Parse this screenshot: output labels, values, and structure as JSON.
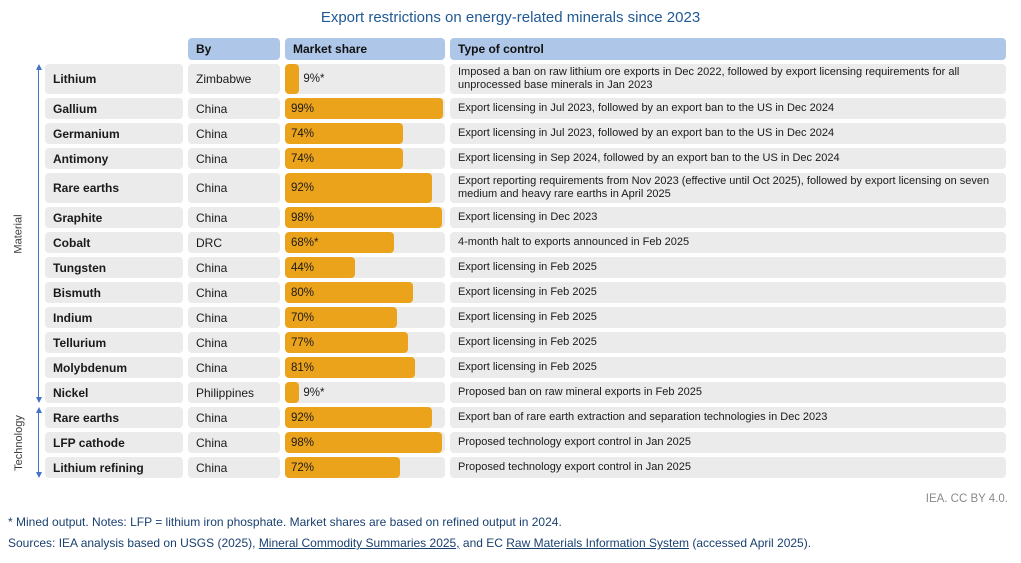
{
  "title": "Export restrictions on energy-related minerals since 2023",
  "columns": {
    "by": "By",
    "market_share": "Market share",
    "type_of_control": "Type of control"
  },
  "groups": [
    {
      "label": "Material",
      "rows": 13
    },
    {
      "label": "Technology",
      "rows": 3
    }
  ],
  "rows": [
    {
      "mineral": "Lithium",
      "by": "Zimbabwe",
      "share": 9,
      "share_label": "9%*",
      "tall": true,
      "control": "Imposed a ban on raw lithium ore exports in Dec 2022, followed by export licensing requirements for all unprocessed base minerals in Jan 2023"
    },
    {
      "mineral": "Gallium",
      "by": "China",
      "share": 99,
      "share_label": "99%",
      "control": "Export licensing in Jul 2023, followed by an export ban to the US in Dec 2024"
    },
    {
      "mineral": "Germanium",
      "by": "China",
      "share": 74,
      "share_label": "74%",
      "control": "Export licensing in Jul 2023, followed by an export ban to the US in Dec 2024"
    },
    {
      "mineral": "Antimony",
      "by": "China",
      "share": 74,
      "share_label": "74%",
      "control": "Export licensing in Sep 2024, followed by an export ban to the US in Dec 2024"
    },
    {
      "mineral": "Rare earths",
      "by": "China",
      "share": 92,
      "share_label": "92%",
      "tall": true,
      "control": "Export reporting requirements from Nov 2023 (effective until Oct 2025), followed by export licensing on seven medium and heavy rare earths in April 2025"
    },
    {
      "mineral": "Graphite",
      "by": "China",
      "share": 98,
      "share_label": "98%",
      "control": "Export licensing in Dec 2023"
    },
    {
      "mineral": "Cobalt",
      "by": "DRC",
      "share": 68,
      "share_label": "68%*",
      "control": "4-month halt to exports announced in Feb 2025"
    },
    {
      "mineral": "Tungsten",
      "by": "China",
      "share": 44,
      "share_label": "44%",
      "control": "Export licensing in Feb 2025"
    },
    {
      "mineral": "Bismuth",
      "by": "China",
      "share": 80,
      "share_label": "80%",
      "control": "Export licensing in Feb 2025"
    },
    {
      "mineral": "Indium",
      "by": "China",
      "share": 70,
      "share_label": "70%",
      "control": "Export licensing in Feb 2025"
    },
    {
      "mineral": "Tellurium",
      "by": "China",
      "share": 77,
      "share_label": "77%",
      "control": "Export licensing in Feb 2025"
    },
    {
      "mineral": "Molybdenum",
      "by": "China",
      "share": 81,
      "share_label": "81%",
      "control": "Export licensing in Feb 2025"
    },
    {
      "mineral": "Nickel",
      "by": "Philippines",
      "share": 9,
      "share_label": "9%*",
      "control": "Proposed ban on raw mineral exports in Feb 2025"
    },
    {
      "mineral": "Rare earths",
      "by": "China",
      "share": 92,
      "share_label": "92%",
      "control": "Export ban of rare earth extraction and separation technologies in Dec 2023"
    },
    {
      "mineral": "LFP cathode",
      "by": "China",
      "share": 98,
      "share_label": "98%",
      "control": "Proposed technology export control in Jan 2025"
    },
    {
      "mineral": "Lithium refining",
      "by": "China",
      "share": 72,
      "share_label": "72%",
      "control": "Proposed technology export control in Jan 2025"
    }
  ],
  "credit": "IEA. CC BY 4.0.",
  "notes": "* Mined output. Notes: LFP = lithium iron phosphate. Market shares are based on refined output in 2024.",
  "sources": {
    "prefix": "Sources: IEA analysis based on USGS (2025), ",
    "link1": "Mineral Commodity Summaries 2025,",
    "middle": " and EC ",
    "link2": "Raw Materials Information System",
    "suffix": " (accessed April 2025)."
  },
  "colors": {
    "bar_orange": "#ECA31C",
    "header_blue": "#AEC6E8",
    "row_gray": "#EBEBEB",
    "arrow_blue": "#4472C4",
    "title_blue": "#205A96",
    "footer_navy": "#1A4070",
    "credit_gray": "#8A8A8A"
  },
  "chart_data": {
    "type": "bar",
    "orientation": "horizontal",
    "title": "Export restrictions on energy-related minerals since 2023",
    "categories": [
      "Lithium",
      "Gallium",
      "Germanium",
      "Antimony",
      "Rare earths",
      "Graphite",
      "Cobalt",
      "Tungsten",
      "Bismuth",
      "Indium",
      "Tellurium",
      "Molybdenum",
      "Nickel",
      "Rare earths",
      "LFP cathode",
      "Lithium refining"
    ],
    "values": [
      9,
      99,
      74,
      74,
      92,
      98,
      68,
      44,
      80,
      70,
      77,
      81,
      9,
      92,
      98,
      72
    ],
    "value_labels": [
      "9%*",
      "99%",
      "74%",
      "74%",
      "92%",
      "98%",
      "68%*",
      "44%",
      "80%",
      "70%",
      "77%",
      "81%",
      "9%*",
      "92%",
      "98%",
      "72%"
    ],
    "by": [
      "Zimbabwe",
      "China",
      "China",
      "China",
      "China",
      "China",
      "DRC",
      "China",
      "China",
      "China",
      "China",
      "China",
      "Philippines",
      "China",
      "China",
      "China"
    ],
    "group_of_category": [
      "Material",
      "Material",
      "Material",
      "Material",
      "Material",
      "Material",
      "Material",
      "Material",
      "Material",
      "Material",
      "Material",
      "Material",
      "Material",
      "Technology",
      "Technology",
      "Technology"
    ],
    "xlabel": "Market share",
    "ylabel": "",
    "xlim": [
      0,
      100
    ],
    "grid": false,
    "legend": false,
    "bar_color": "#ECA31C"
  }
}
